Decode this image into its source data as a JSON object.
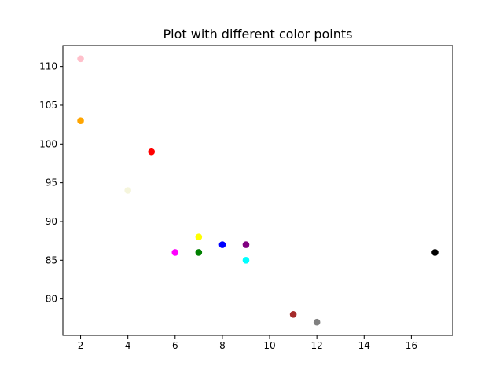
{
  "chart_data": {
    "type": "scatter",
    "title": "Plot with different color points",
    "xlabel": "",
    "ylabel": "",
    "xlim": [
      1.25,
      17.75
    ],
    "ylim": [
      75.3,
      112.7
    ],
    "x_ticks": [
      2,
      4,
      6,
      8,
      10,
      12,
      14,
      16
    ],
    "y_ticks": [
      80,
      85,
      90,
      95,
      100,
      105,
      110
    ],
    "grid": false,
    "points": [
      {
        "x": 5,
        "y": 99,
        "color": "#ff0000"
      },
      {
        "x": 7,
        "y": 86,
        "color": "#008000"
      },
      {
        "x": 8,
        "y": 87,
        "color": "#0000ff"
      },
      {
        "x": 7,
        "y": 88,
        "color": "#ffff00"
      },
      {
        "x": 2,
        "y": 111,
        "color": "#ffc0cb"
      },
      {
        "x": 17,
        "y": 86,
        "color": "#000000"
      },
      {
        "x": 2,
        "y": 103,
        "color": "#ffa500"
      },
      {
        "x": 9,
        "y": 87,
        "color": "#800080"
      },
      {
        "x": 4,
        "y": 94,
        "color": "#f5f5dc"
      },
      {
        "x": 11,
        "y": 78,
        "color": "#a52a2a"
      },
      {
        "x": 12,
        "y": 77,
        "color": "#808080"
      },
      {
        "x": 9,
        "y": 85,
        "color": "#00ffff"
      },
      {
        "x": 6,
        "y": 86,
        "color": "#ff00ff"
      }
    ]
  }
}
